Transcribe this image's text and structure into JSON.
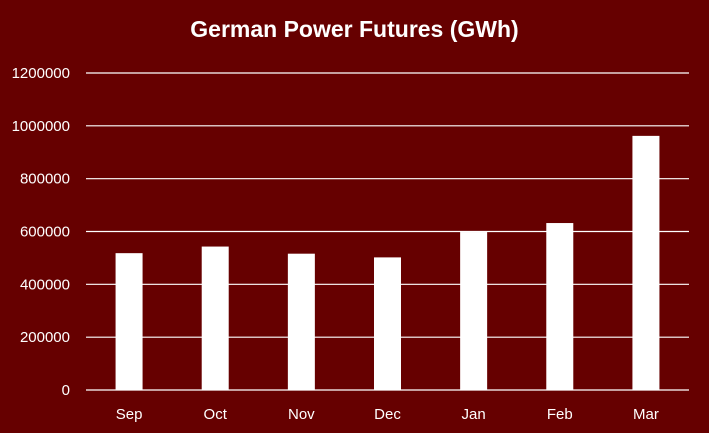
{
  "colors": {
    "background": "#660000",
    "bar": "#ffffff",
    "text": "#ffffff",
    "grid": "#ffffff"
  },
  "chart_data": {
    "type": "bar",
    "title": "German Power Futures (GWh)",
    "xlabel": "",
    "ylabel": "",
    "categories": [
      "Sep",
      "Oct",
      "Nov",
      "Dec",
      "Jan",
      "Feb",
      "Mar"
    ],
    "values": [
      518000,
      543000,
      516000,
      502000,
      598000,
      632000,
      962000
    ],
    "ylim": [
      0,
      1200000
    ],
    "yticks": [
      "0",
      "200000",
      "400000",
      "600000",
      "800000",
      "1000000",
      "1200000"
    ],
    "grid": true,
    "legend": "none"
  }
}
